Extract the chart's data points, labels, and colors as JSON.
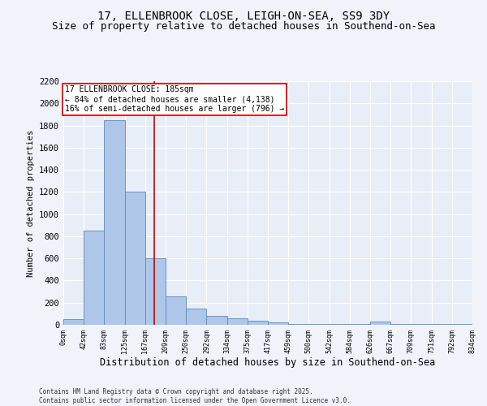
{
  "title1": "17, ELLENBROOK CLOSE, LEIGH-ON-SEA, SS9 3DY",
  "title2": "Size of property relative to detached houses in Southend-on-Sea",
  "xlabel": "Distribution of detached houses by size in Southend-on-Sea",
  "ylabel": "Number of detached properties",
  "annotation_line1": "17 ELLENBROOK CLOSE: 185sqm",
  "annotation_line2": "← 84% of detached houses are smaller (4,138)",
  "annotation_line3": "16% of semi-detached houses are larger (796) →",
  "footer1": "Contains HM Land Registry data © Crown copyright and database right 2025.",
  "footer2": "Contains public sector information licensed under the Open Government Licence v3.0.",
  "bar_edges": [
    0,
    42,
    83,
    125,
    167,
    209,
    250,
    292,
    334,
    375,
    417,
    459,
    500,
    542,
    584,
    626,
    667,
    709,
    751,
    792,
    834
  ],
  "bar_heights": [
    50,
    850,
    1850,
    1200,
    600,
    260,
    150,
    80,
    60,
    40,
    20,
    10,
    5,
    5,
    5,
    30,
    5,
    5,
    5,
    5
  ],
  "bar_color": "#aec6e8",
  "bar_edge_color": "#5b8abf",
  "vline_x": 185,
  "vline_color": "#cc0000",
  "ylim": [
    0,
    2200
  ],
  "yticks": [
    0,
    200,
    400,
    600,
    800,
    1000,
    1200,
    1400,
    1600,
    1800,
    2000,
    2200
  ],
  "bg_color": "#f0f4fa",
  "plot_bg_color": "#e8eef8",
  "grid_color": "#ffffff",
  "title_fontsize": 10,
  "subtitle_fontsize": 9
}
